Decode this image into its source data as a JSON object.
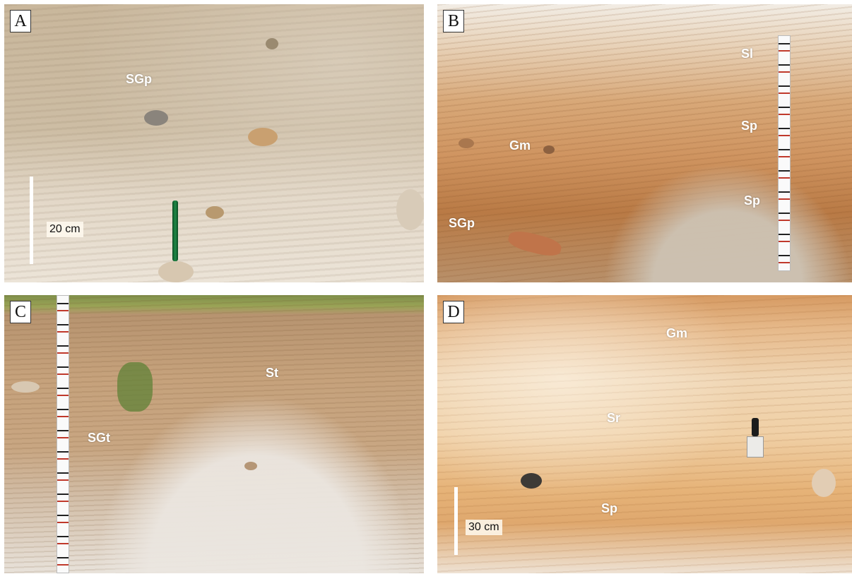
{
  "panels": {
    "a": {
      "letter": "A",
      "labels": {
        "sgp": "SGp"
      },
      "scale": {
        "text": "20 cm"
      }
    },
    "b": {
      "letter": "B",
      "labels": {
        "sl": "Sl",
        "sp_upper": "Sp",
        "sp_lower": "Sp",
        "gm": "Gm",
        "sgp": "SGp"
      }
    },
    "c": {
      "letter": "C",
      "labels": {
        "st": "St",
        "sgt": "SGt"
      }
    },
    "d": {
      "letter": "D",
      "labels": {
        "gm": "Gm",
        "sr": "Sr",
        "sp": "Sp"
      },
      "scale": {
        "text": "30 cm"
      }
    }
  }
}
